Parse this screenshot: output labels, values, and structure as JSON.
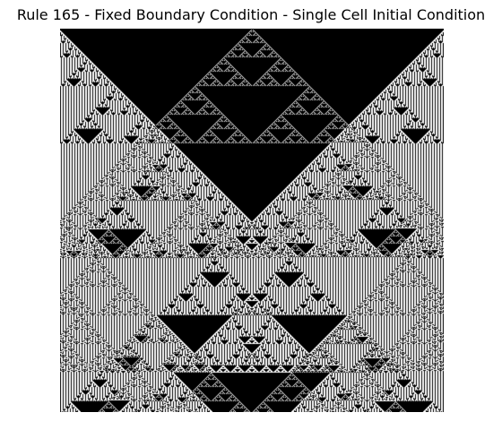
{
  "figure": {
    "title": "Rule 165 - Fixed Boundary Condition - Single Cell Initial Condition"
  },
  "automaton": {
    "rule": 165,
    "boundary": "fixed",
    "initial_condition": "single cell",
    "live_color": "#000000",
    "dead_color": "#ffffff"
  }
}
